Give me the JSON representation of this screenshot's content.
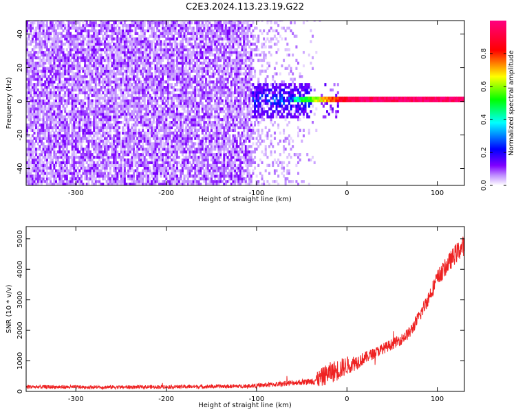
{
  "page_title": "C2E3.2024.113.23.19.G22",
  "chart_data": [
    {
      "type": "heatmap",
      "title": "C2E3.2024.113.23.19.G22",
      "xlabel": "Height of straight line (km)",
      "ylabel": "Frequency (Hz)",
      "xlim": [
        -355,
        130
      ],
      "ylim": [
        -50,
        48
      ],
      "x_ticks": [
        "-300",
        "-200",
        "-100",
        "0",
        "100"
      ],
      "x_tick_values": [
        -300,
        -200,
        -100,
        0,
        100
      ],
      "y_ticks": [
        "40",
        "20",
        "0",
        "-20",
        "-40"
      ],
      "y_tick_values": [
        40,
        20,
        0,
        -20,
        -40
      ],
      "grid": false,
      "description_regions": [
        {
          "x_range": [
            -355,
            -105
          ],
          "freq_range": [
            -50,
            48
          ],
          "amplitude": [
            0.0,
            0.1
          ],
          "pattern": "broadband noise"
        },
        {
          "x_range": [
            -105,
            -30
          ],
          "freq_range": [
            -50,
            48
          ],
          "amplitude": [
            0.0,
            0.05
          ],
          "pattern": "sparse noise"
        },
        {
          "x_range": [
            -105,
            -30
          ],
          "freq_range": [
            -12,
            6
          ],
          "amplitude": [
            0.1,
            0.5
          ],
          "pattern": "emerging carrier"
        },
        {
          "x_range": [
            -30,
            130
          ],
          "freq_range": [
            -1.5,
            1.5
          ],
          "amplitude": [
            0.6,
            1.0
          ],
          "pattern": "narrow carrier line at 0 Hz"
        }
      ],
      "colorbar": {
        "label": "Normalized spectral amplitude",
        "range": [
          0.0,
          1.0
        ],
        "ticks": [
          "0.0",
          "0.2",
          "0.4",
          "0.6",
          "0.8"
        ],
        "tick_values": [
          0.0,
          0.2,
          0.4,
          0.6,
          0.8
        ],
        "colors": [
          "#ffffff",
          "#8000ff",
          "#0000ff",
          "#00ffff",
          "#00ff00",
          "#ffff00",
          "#ff0000",
          "#ff0080"
        ]
      }
    },
    {
      "type": "line",
      "xlabel": "Height of straight line (km)",
      "ylabel": "SNR (10 * v/v)",
      "xlim": [
        -355,
        130
      ],
      "ylim": [
        0,
        5400
      ],
      "x_ticks": [
        "-300",
        "-200",
        "-100",
        "0",
        "100"
      ],
      "x_tick_values": [
        -300,
        -200,
        -100,
        0,
        100
      ],
      "y_ticks": [
        "0",
        "1000",
        "2000",
        "3000",
        "4000",
        "5000"
      ],
      "y_tick_values": [
        0,
        1000,
        2000,
        3000,
        4000,
        5000
      ],
      "grid": false,
      "series": [
        {
          "color": "#ee2222",
          "x": [
            -355,
            -300,
            -250,
            -200,
            -150,
            -120,
            -100,
            -80,
            -60,
            -40,
            -30,
            -20,
            -10,
            0,
            10,
            20,
            30,
            40,
            50,
            60,
            70,
            80,
            90,
            100,
            110,
            120,
            130
          ],
          "y": [
            150,
            140,
            140,
            150,
            160,
            170,
            190,
            230,
            280,
            330,
            420,
            600,
            700,
            850,
            950,
            1100,
            1250,
            1400,
            1550,
            1700,
            1950,
            2450,
            3050,
            3700,
            4100,
            4500,
            4800
          ],
          "noise": [
            60,
            60,
            60,
            60,
            60,
            60,
            70,
            80,
            90,
            100,
            300,
            350,
            350,
            300,
            250,
            200,
            180,
            180,
            180,
            180,
            200,
            220,
            250,
            280,
            300,
            320,
            340
          ]
        }
      ]
    }
  ]
}
